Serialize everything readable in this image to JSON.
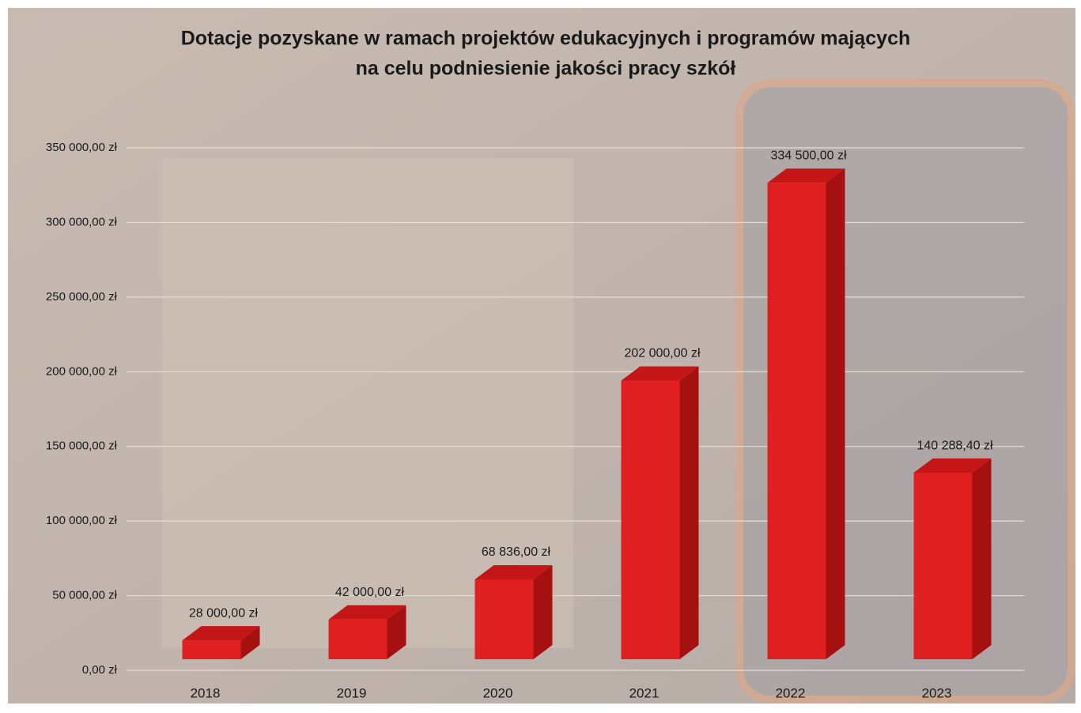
{
  "chart_data": {
    "type": "bar3d",
    "title": "Dotacje pozyskane w ramach projektów edukacyjnych i programów mających",
    "subtitle": "na celu podniesienie jakości pracy szkół",
    "categories": [
      "2018",
      "2019",
      "2020",
      "2021",
      "2022",
      "2023"
    ],
    "values": [
      28000,
      42000,
      68836,
      202000,
      334500,
      140288.4
    ],
    "value_labels": [
      "28 000,00 zł",
      "42 000,00 zł",
      "68 836,00 zł",
      "202 000,00 zł",
      "334 500,00 zł",
      "140 288,40 zł"
    ],
    "color": "#e02020",
    "ylim": [
      0,
      350000
    ],
    "yticks": [
      {
        "value": 0,
        "label": "0,00 zł"
      },
      {
        "value": 50000,
        "label": "50 000,00 zł"
      },
      {
        "value": 100000,
        "label": "100 000,00 zł"
      },
      {
        "value": 150000,
        "label": "150 000,00 zł"
      },
      {
        "value": 200000,
        "label": "200 000,00 zł"
      },
      {
        "value": 250000,
        "label": "250 000,00 zł"
      },
      {
        "value": 300000,
        "label": "300 000,00 zł"
      },
      {
        "value": 350000,
        "label": "350 000,00 zł"
      }
    ],
    "grid": true
  }
}
